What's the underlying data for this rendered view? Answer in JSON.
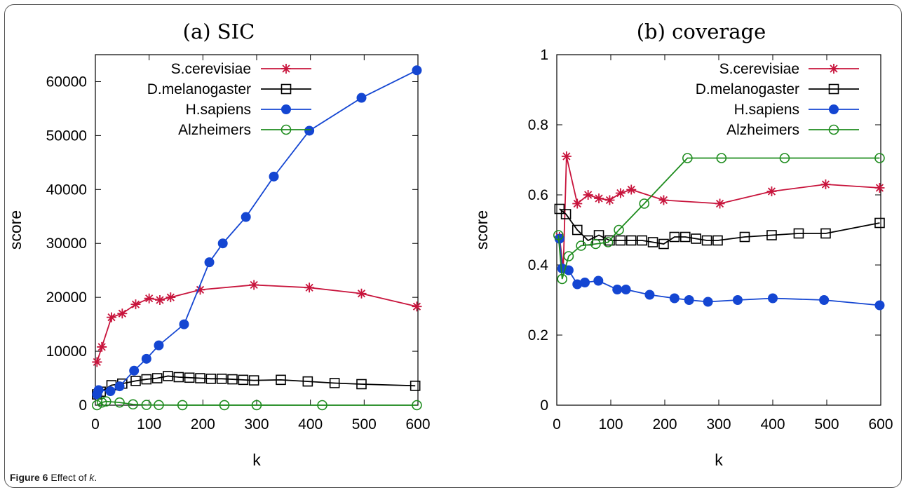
{
  "caption": {
    "label": "Figure 6",
    "text_pre": "Effect of ",
    "text_var": "k",
    "text_post": "."
  },
  "colors": {
    "sc": "#c8143c",
    "dm": "#000000",
    "hs": "#1446d2",
    "al": "#1e8c1e"
  },
  "chart_data": [
    {
      "type": "line",
      "title": "(a) SIC",
      "xlabel": "k",
      "ylabel": "score",
      "xlim": [
        0,
        600
      ],
      "ylim": [
        0,
        65000
      ],
      "xticks": [
        0,
        100,
        200,
        300,
        400,
        500,
        600
      ],
      "yticks": [
        0,
        10000,
        20000,
        30000,
        40000,
        50000,
        60000
      ],
      "ytick_labels": [
        "0",
        "10000",
        "20000",
        "30000",
        "40000",
        "50000",
        "60000"
      ],
      "legend_position": "top-left",
      "series": [
        {
          "name": "S.cerevisiae",
          "marker": "star",
          "color": "#c8143c",
          "points": [
            [
              3,
              8000
            ],
            [
              12,
              10800
            ],
            [
              30,
              16300
            ],
            [
              50,
              17000
            ],
            [
              75,
              18700
            ],
            [
              100,
              19800
            ],
            [
              120,
              19500
            ],
            [
              140,
              20000
            ],
            [
              195,
              21400
            ],
            [
              295,
              22300
            ],
            [
              398,
              21800
            ],
            [
              495,
              20700
            ],
            [
              598,
              18300
            ]
          ]
        },
        {
          "name": "D.melanogaster",
          "marker": "square",
          "color": "#000000",
          "points": [
            [
              3,
              2000
            ],
            [
              10,
              2500
            ],
            [
              30,
              3700
            ],
            [
              50,
              4000
            ],
            [
              75,
              4500
            ],
            [
              95,
              4800
            ],
            [
              115,
              5000
            ],
            [
              135,
              5400
            ],
            [
              155,
              5200
            ],
            [
              175,
              5100
            ],
            [
              195,
              5000
            ],
            [
              215,
              4900
            ],
            [
              235,
              4900
            ],
            [
              255,
              4800
            ],
            [
              275,
              4700
            ],
            [
              295,
              4600
            ],
            [
              345,
              4700
            ],
            [
              395,
              4400
            ],
            [
              445,
              4100
            ],
            [
              495,
              3900
            ],
            [
              595,
              3600
            ]
          ]
        },
        {
          "name": "H.sapiens",
          "marker": "filled-circle",
          "color": "#1446d2",
          "points": [
            [
              3,
              2000
            ],
            [
              6,
              2800
            ],
            [
              28,
              2600
            ],
            [
              45,
              3500
            ],
            [
              72,
              6400
            ],
            [
              95,
              8600
            ],
            [
              118,
              11100
            ],
            [
              165,
              15000
            ],
            [
              212,
              26500
            ],
            [
              237,
              30000
            ],
            [
              280,
              34900
            ],
            [
              332,
              42400
            ],
            [
              398,
              50900
            ],
            [
              495,
              57000
            ],
            [
              598,
              62100
            ]
          ]
        },
        {
          "name": "Alzheimers",
          "marker": "open-circle",
          "color": "#1e8c1e",
          "points": [
            [
              3,
              0
            ],
            [
              12,
              500
            ],
            [
              20,
              700
            ],
            [
              45,
              500
            ],
            [
              70,
              150
            ],
            [
              95,
              50
            ],
            [
              118,
              30
            ],
            [
              162,
              10
            ],
            [
              240,
              10
            ],
            [
              300,
              10
            ],
            [
              422,
              0
            ],
            [
              598,
              0
            ]
          ]
        }
      ]
    },
    {
      "type": "line",
      "title": "(b) coverage",
      "xlabel": "k",
      "ylabel": "score",
      "xlim": [
        0,
        600
      ],
      "ylim": [
        0,
        1
      ],
      "xticks": [
        0,
        100,
        200,
        300,
        400,
        500,
        600
      ],
      "yticks": [
        0,
        0.2,
        0.4,
        0.6,
        0.8,
        1
      ],
      "ytick_labels": [
        "0",
        "0.2",
        "0.4",
        "0.6",
        "0.8",
        "1"
      ],
      "legend_position": "top-right",
      "series": [
        {
          "name": "S.cerevisiae",
          "marker": "star",
          "color": "#c8143c",
          "points": [
            [
              5,
              0.48
            ],
            [
              12,
              0.39
            ],
            [
              18,
              0.71
            ],
            [
              38,
              0.575
            ],
            [
              58,
              0.6
            ],
            [
              78,
              0.59
            ],
            [
              98,
              0.585
            ],
            [
              118,
              0.605
            ],
            [
              138,
              0.615
            ],
            [
              198,
              0.585
            ],
            [
              302,
              0.575
            ],
            [
              398,
              0.61
            ],
            [
              498,
              0.63
            ],
            [
              598,
              0.62
            ]
          ]
        },
        {
          "name": "D.melanogaster",
          "marker": "square",
          "color": "#000000",
          "points": [
            [
              5,
              0.56
            ],
            [
              17,
              0.545
            ],
            [
              38,
              0.5
            ],
            [
              58,
              0.47
            ],
            [
              78,
              0.485
            ],
            [
              98,
              0.47
            ],
            [
              118,
              0.47
            ],
            [
              138,
              0.47
            ],
            [
              158,
              0.47
            ],
            [
              178,
              0.465
            ],
            [
              198,
              0.46
            ],
            [
              218,
              0.48
            ],
            [
              238,
              0.48
            ],
            [
              258,
              0.475
            ],
            [
              278,
              0.47
            ],
            [
              298,
              0.47
            ],
            [
              348,
              0.48
            ],
            [
              398,
              0.485
            ],
            [
              448,
              0.49
            ],
            [
              498,
              0.49
            ],
            [
              598,
              0.52
            ]
          ]
        },
        {
          "name": "H.sapiens",
          "marker": "filled-circle",
          "color": "#1446d2",
          "points": [
            [
              5,
              0.475
            ],
            [
              10,
              0.39
            ],
            [
              22,
              0.385
            ],
            [
              38,
              0.345
            ],
            [
              52,
              0.35
            ],
            [
              77,
              0.355
            ],
            [
              112,
              0.33
            ],
            [
              128,
              0.33
            ],
            [
              172,
              0.315
            ],
            [
              218,
              0.305
            ],
            [
              245,
              0.3
            ],
            [
              280,
              0.295
            ],
            [
              335,
              0.3
            ],
            [
              400,
              0.305
            ],
            [
              495,
              0.3
            ],
            [
              598,
              0.285
            ]
          ]
        },
        {
          "name": "Alzheimers",
          "marker": "open-circle",
          "color": "#1e8c1e",
          "points": [
            [
              3,
              0.485
            ],
            [
              10,
              0.36
            ],
            [
              22,
              0.425
            ],
            [
              45,
              0.455
            ],
            [
              72,
              0.46
            ],
            [
              95,
              0.465
            ],
            [
              115,
              0.5
            ],
            [
              162,
              0.575
            ],
            [
              242,
              0.705
            ],
            [
              305,
              0.705
            ],
            [
              422,
              0.705
            ],
            [
              598,
              0.705
            ]
          ]
        }
      ]
    }
  ]
}
